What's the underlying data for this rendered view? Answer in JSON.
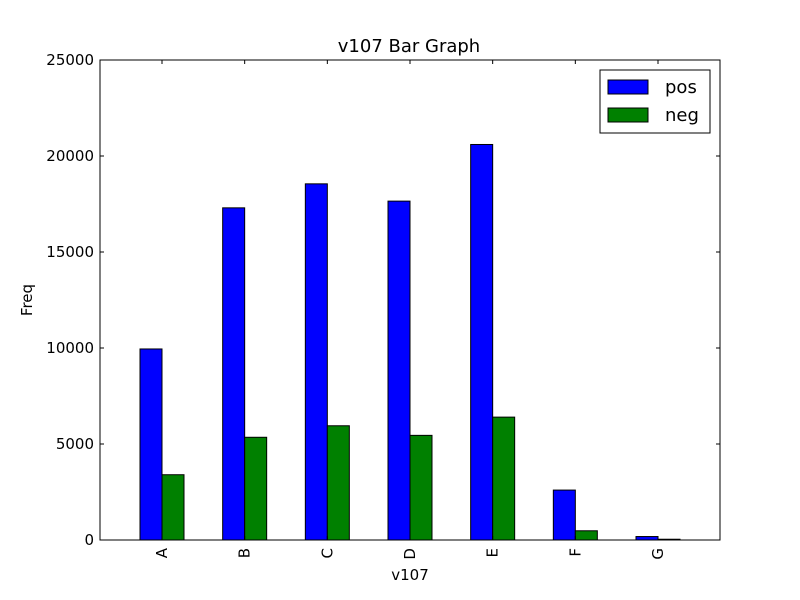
{
  "chart_data": {
    "type": "bar",
    "title": "v107 Bar Graph",
    "xlabel": "v107",
    "ylabel": "Freq",
    "categories": [
      "A",
      "B",
      "C",
      "D",
      "E",
      "F",
      "G"
    ],
    "series": [
      {
        "name": "pos",
        "color": "#0000ff",
        "values": [
          9950,
          17300,
          18550,
          17650,
          20600,
          2600,
          180
        ]
      },
      {
        "name": "neg",
        "color": "#008000",
        "values": [
          3400,
          5350,
          5950,
          5450,
          6400,
          480,
          40
        ]
      }
    ],
    "ylim": [
      0,
      25000
    ],
    "yticks": [
      "0",
      "5000",
      "10000",
      "15000",
      "20000",
      "25000"
    ],
    "legend_position": "top-right",
    "grid": false
  }
}
